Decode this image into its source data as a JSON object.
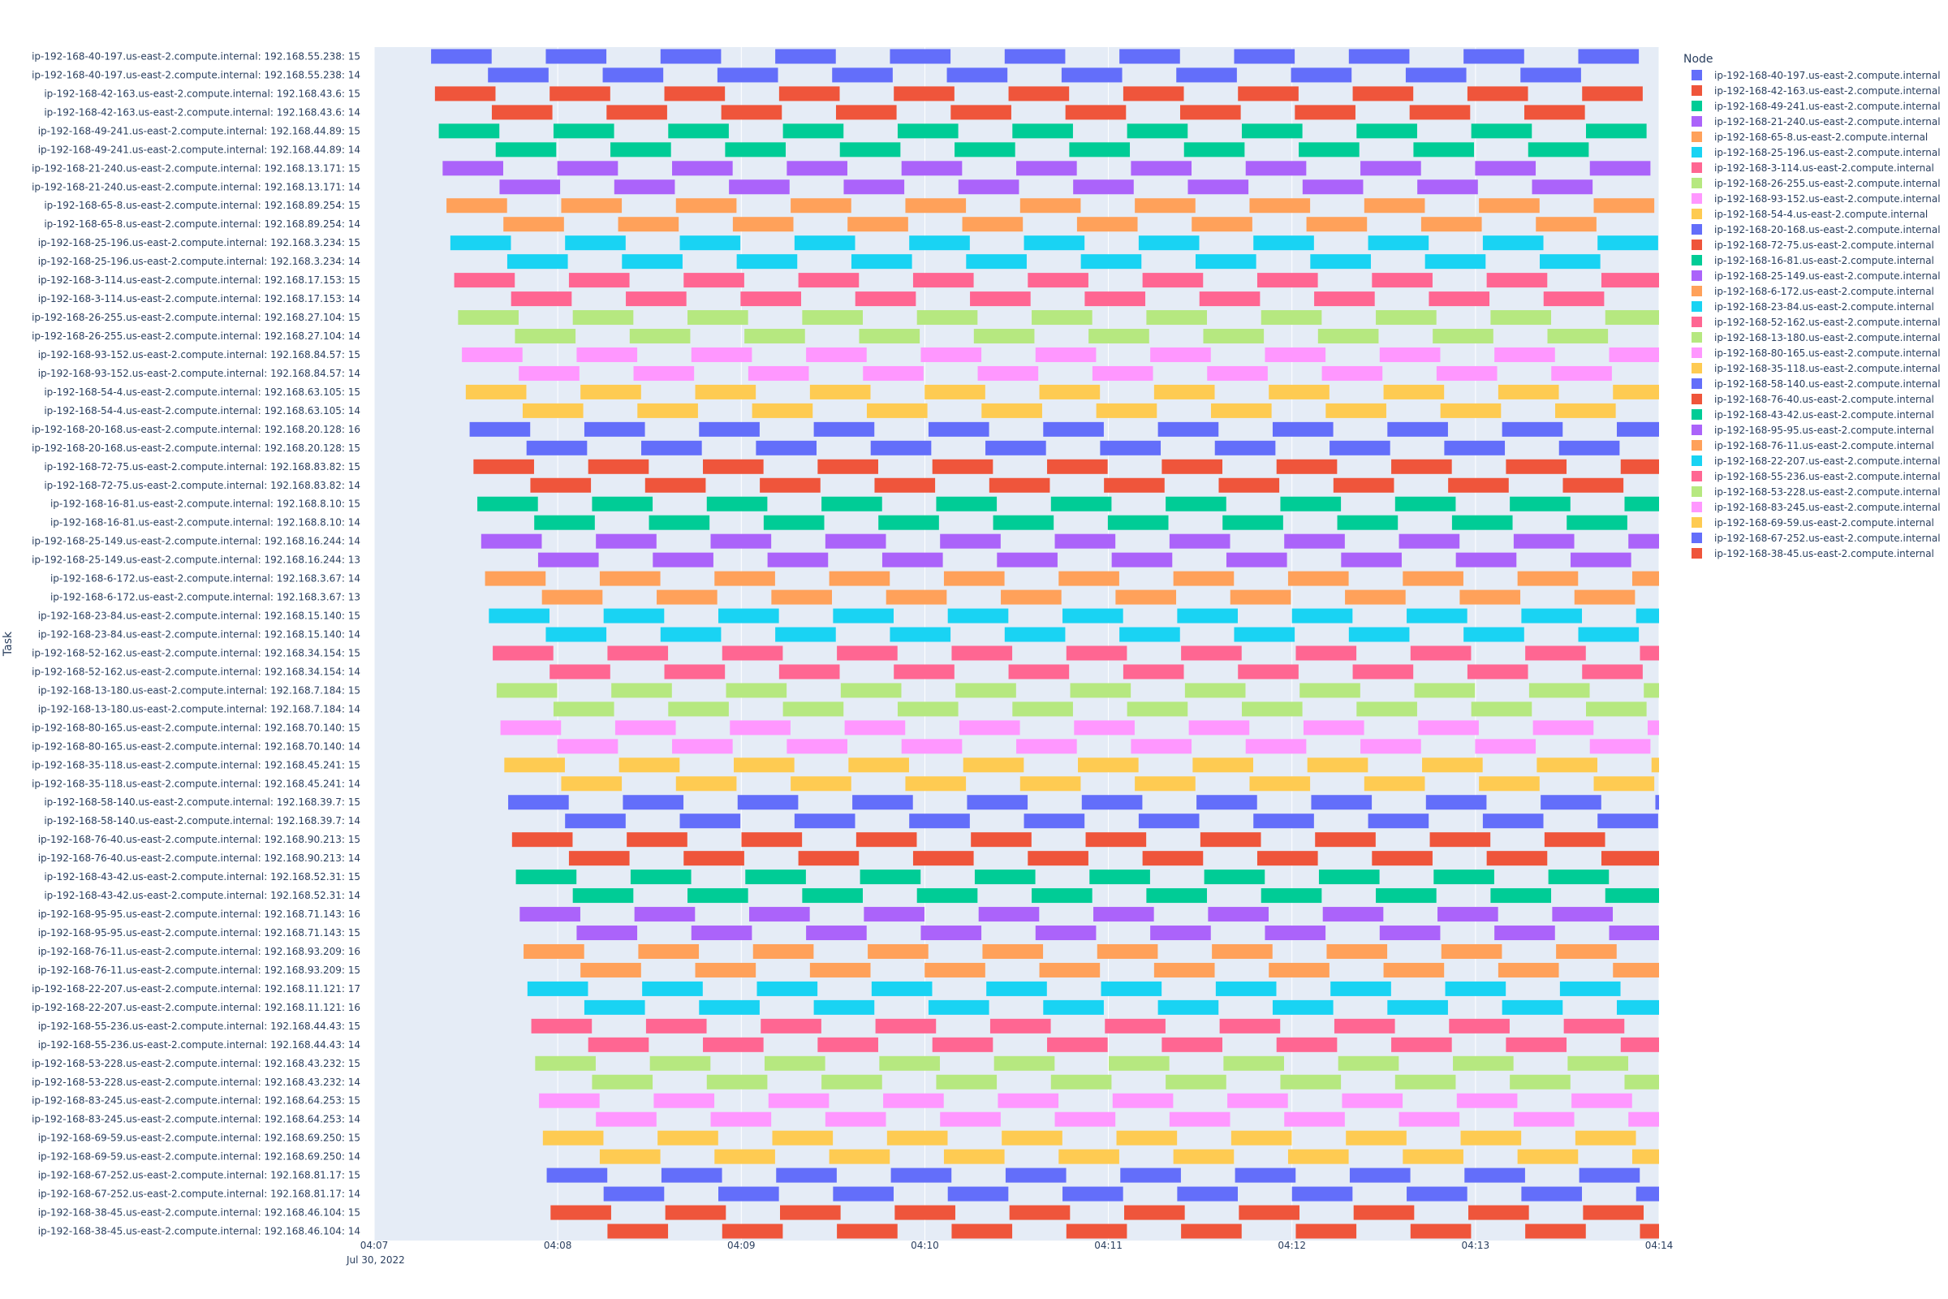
{
  "chart_data": {
    "type": "gantt",
    "title": "",
    "xlabel": "",
    "ylabel": "Task",
    "x_start": "04:07:00",
    "x_end": "04:14:00",
    "x_ticks": [
      "04:07",
      "04:08",
      "04:09",
      "04:10",
      "04:11",
      "04:12",
      "04:13",
      "04:14"
    ],
    "x_date_label": "Jul 30, 2022",
    "legend_title": "Node",
    "legend_placement": "right",
    "grid": true,
    "nodes": [
      {
        "name": "ip-192-168-40-197.us-east-2.compute.internal",
        "color": "#636efa"
      },
      {
        "name": "ip-192-168-42-163.us-east-2.compute.internal",
        "color": "#EF553B"
      },
      {
        "name": "ip-192-168-49-241.us-east-2.compute.internal",
        "color": "#00cc96"
      },
      {
        "name": "ip-192-168-21-240.us-east-2.compute.internal",
        "color": "#ab63fa"
      },
      {
        "name": "ip-192-168-65-8.us-east-2.compute.internal",
        "color": "#FFA15A"
      },
      {
        "name": "ip-192-168-25-196.us-east-2.compute.internal",
        "color": "#19d3f3"
      },
      {
        "name": "ip-192-168-3-114.us-east-2.compute.internal",
        "color": "#FF6692"
      },
      {
        "name": "ip-192-168-26-255.us-east-2.compute.internal",
        "color": "#B6E880"
      },
      {
        "name": "ip-192-168-93-152.us-east-2.compute.internal",
        "color": "#FF97FF"
      },
      {
        "name": "ip-192-168-54-4.us-east-2.compute.internal",
        "color": "#FECB52"
      },
      {
        "name": "ip-192-168-20-168.us-east-2.compute.internal",
        "color": "#636efa"
      },
      {
        "name": "ip-192-168-72-75.us-east-2.compute.internal",
        "color": "#EF553B"
      },
      {
        "name": "ip-192-168-16-81.us-east-2.compute.internal",
        "color": "#00cc96"
      },
      {
        "name": "ip-192-168-25-149.us-east-2.compute.internal",
        "color": "#ab63fa"
      },
      {
        "name": "ip-192-168-6-172.us-east-2.compute.internal",
        "color": "#FFA15A"
      },
      {
        "name": "ip-192-168-23-84.us-east-2.compute.internal",
        "color": "#19d3f3"
      },
      {
        "name": "ip-192-168-52-162.us-east-2.compute.internal",
        "color": "#FF6692"
      },
      {
        "name": "ip-192-168-13-180.us-east-2.compute.internal",
        "color": "#B6E880"
      },
      {
        "name": "ip-192-168-80-165.us-east-2.compute.internal",
        "color": "#FF97FF"
      },
      {
        "name": "ip-192-168-35-118.us-east-2.compute.internal",
        "color": "#FECB52"
      },
      {
        "name": "ip-192-168-58-140.us-east-2.compute.internal",
        "color": "#636efa"
      },
      {
        "name": "ip-192-168-76-40.us-east-2.compute.internal",
        "color": "#EF553B"
      },
      {
        "name": "ip-192-168-43-42.us-east-2.compute.internal",
        "color": "#00cc96"
      },
      {
        "name": "ip-192-168-95-95.us-east-2.compute.internal",
        "color": "#ab63fa"
      },
      {
        "name": "ip-192-168-76-11.us-east-2.compute.internal",
        "color": "#FFA15A"
      },
      {
        "name": "ip-192-168-22-207.us-east-2.compute.internal",
        "color": "#19d3f3"
      },
      {
        "name": "ip-192-168-55-236.us-east-2.compute.internal",
        "color": "#FF6692"
      },
      {
        "name": "ip-192-168-53-228.us-east-2.compute.internal",
        "color": "#B6E880"
      },
      {
        "name": "ip-192-168-83-245.us-east-2.compute.internal",
        "color": "#FF97FF"
      },
      {
        "name": "ip-192-168-69-59.us-east-2.compute.internal",
        "color": "#FECB52"
      },
      {
        "name": "ip-192-168-67-252.us-east-2.compute.internal",
        "color": "#636efa"
      },
      {
        "name": "ip-192-168-38-45.us-east-2.compute.internal",
        "color": "#EF553B"
      }
    ],
    "task_ips": [
      {
        "ip": "192.168.55.238",
        "slots": [
          "15",
          "14"
        ]
      },
      {
        "ip": "192.168.43.6",
        "slots": [
          "15",
          "14"
        ]
      },
      {
        "ip": "192.168.44.89",
        "slots": [
          "15",
          "14"
        ]
      },
      {
        "ip": "192.168.13.171",
        "slots": [
          "15",
          "14"
        ]
      },
      {
        "ip": "192.168.89.254",
        "slots": [
          "15",
          "14"
        ]
      },
      {
        "ip": "192.168.3.234",
        "slots": [
          "15",
          "14"
        ]
      },
      {
        "ip": "192.168.17.153",
        "slots": [
          "15",
          "14"
        ]
      },
      {
        "ip": "192.168.27.104",
        "slots": [
          "15",
          "14"
        ]
      },
      {
        "ip": "192.168.84.57",
        "slots": [
          "15",
          "14"
        ]
      },
      {
        "ip": "192.168.63.105",
        "slots": [
          "15",
          "14"
        ]
      },
      {
        "ip": "192.168.20.128",
        "slots": [
          "16",
          "15"
        ]
      },
      {
        "ip": "192.168.83.82",
        "slots": [
          "15",
          "14"
        ]
      },
      {
        "ip": "192.168.8.10",
        "slots": [
          "15",
          "14"
        ]
      },
      {
        "ip": "192.168.16.244",
        "slots": [
          "14",
          "13"
        ]
      },
      {
        "ip": "192.168.3.67",
        "slots": [
          "14",
          "13"
        ]
      },
      {
        "ip": "192.168.15.140",
        "slots": [
          "15",
          "14"
        ]
      },
      {
        "ip": "192.168.34.154",
        "slots": [
          "15",
          "14"
        ]
      },
      {
        "ip": "192.168.7.184",
        "slots": [
          "15",
          "14"
        ]
      },
      {
        "ip": "192.168.70.140",
        "slots": [
          "15",
          "14"
        ]
      },
      {
        "ip": "192.168.45.241",
        "slots": [
          "15",
          "14"
        ]
      },
      {
        "ip": "192.168.39.7",
        "slots": [
          "15",
          "14"
        ]
      },
      {
        "ip": "192.168.90.213",
        "slots": [
          "15",
          "14"
        ]
      },
      {
        "ip": "192.168.52.31",
        "slots": [
          "15",
          "14"
        ]
      },
      {
        "ip": "192.168.71.143",
        "slots": [
          "16",
          "15"
        ]
      },
      {
        "ip": "192.168.93.209",
        "slots": [
          "16",
          "15"
        ]
      },
      {
        "ip": "192.168.11.121",
        "slots": [
          "17",
          "16"
        ]
      },
      {
        "ip": "192.168.44.43",
        "slots": [
          "15",
          "14"
        ]
      },
      {
        "ip": "192.168.43.232",
        "slots": [
          "15",
          "14"
        ]
      },
      {
        "ip": "192.168.64.253",
        "slots": [
          "15",
          "14"
        ]
      },
      {
        "ip": "192.168.69.250",
        "slots": [
          "15",
          "14"
        ]
      },
      {
        "ip": "192.168.81.17",
        "slots": [
          "15",
          "14"
        ]
      },
      {
        "ip": "192.168.46.104",
        "slots": [
          "15",
          "14"
        ]
      }
    ],
    "schedule": {
      "first_row_starts_min": [
        0.31,
        0.62
      ],
      "stagger_per_node_min": 0.021,
      "bars_per_row": [
        11,
        10
      ],
      "bar_duration_min": 0.33,
      "bar_spacing_min": 0.625
    }
  }
}
